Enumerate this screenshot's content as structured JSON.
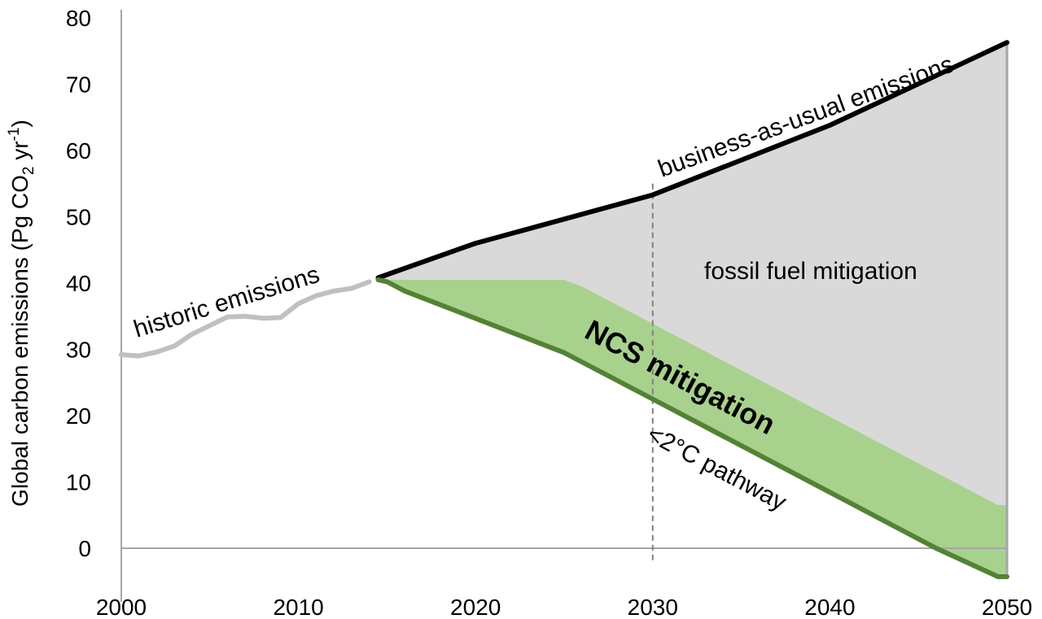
{
  "chart_data": {
    "type": "area",
    "xlabel": "",
    "ylabel_parts": {
      "main": "Global carbon emissions (Pg CO",
      "sub": "2",
      "mid": " yr",
      "sup": "-1",
      "end": ")"
    },
    "xlim": [
      2000,
      2050
    ],
    "ylim": [
      -5,
      80
    ],
    "x_ticks": [
      2000,
      2010,
      2020,
      2030,
      2040,
      2050
    ],
    "y_ticks": [
      0,
      10,
      20,
      30,
      40,
      50,
      60,
      70,
      80
    ],
    "grid": false,
    "reference_lines": {
      "zero_line_y": 0,
      "vertical_dashed_x": 2030
    },
    "colors": {
      "historic": "#c0c0c0",
      "business_as_usual": "#000000",
      "pathway": "#548235",
      "ncs_fill": "#a9d18e",
      "fossil_fill": "#d9d9d9",
      "axis": "#a6a6a6",
      "dashed": "#808080"
    },
    "series": [
      {
        "name": "historic emissions",
        "x": [
          2000,
          2001,
          2002,
          2003,
          2004,
          2005,
          2006,
          2007,
          2008,
          2009,
          2010,
          2011,
          2012,
          2013,
          2014
        ],
        "values": [
          29.2,
          29.0,
          29.6,
          30.5,
          32.3,
          33.6,
          34.9,
          35.0,
          34.7,
          34.8,
          36.9,
          38.1,
          38.8,
          39.2,
          40.2
        ]
      },
      {
        "name": "business-as-usual emissions",
        "x": [
          2014.5,
          2020,
          2030,
          2040,
          2050
        ],
        "values": [
          40.8,
          46.0,
          53.3,
          63.8,
          76.3
        ]
      },
      {
        "name": "<2°C pathway",
        "x": [
          2014.5,
          2015,
          2016,
          2025,
          2030,
          2046,
          2049.5,
          2050
        ],
        "values": [
          40.5,
          40.2,
          38.8,
          29.5,
          22.5,
          0.0,
          -4.3,
          -4.3
        ]
      },
      {
        "name": "NCS mitigation upper bound",
        "x": [
          2014.5,
          2025,
          2026,
          2049.5,
          2050
        ],
        "values": [
          40.5,
          40.5,
          39.5,
          6.5,
          6.5
        ]
      }
    ],
    "labels": {
      "historic": "historic emissions",
      "bau": "business-as-usual emissions",
      "fossil": "fossil fuel mitigation",
      "ncs": "NCS mitigation",
      "pathway": "<2°C pathway"
    }
  }
}
